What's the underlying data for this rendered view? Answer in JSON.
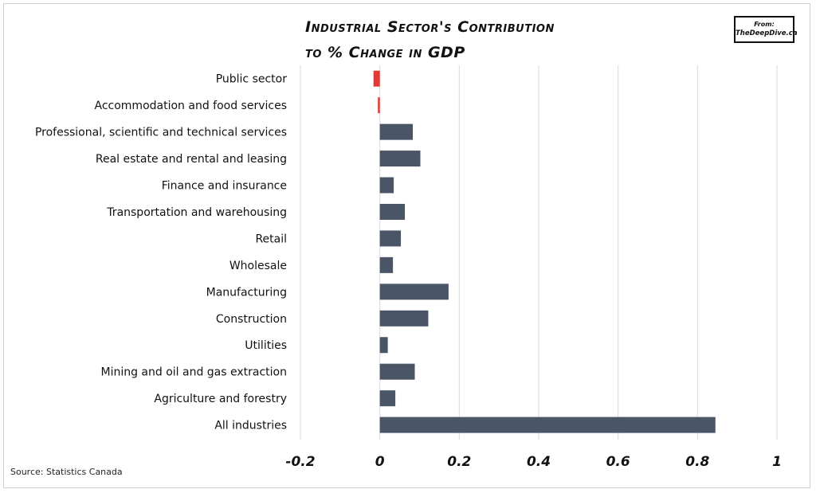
{
  "header": {
    "title_line1": "Industrial Sector's Contribution",
    "title_line2": "to % Change in GDP",
    "badge_from": "From:",
    "badge_site": "TheDeepDive.ca"
  },
  "footer": {
    "source": "Source: Statistics Canada"
  },
  "colors": {
    "positive": "#4a5568",
    "negative": "#e53935",
    "grid": "#d9d9d9"
  },
  "chart_data": {
    "type": "bar",
    "orientation": "horizontal",
    "title": "Industrial Sector's Contribution to % Change in GDP",
    "categories": [
      "Public sector",
      "Accommodation and food services",
      "Professional, scientific and technical services",
      "Real estate and rental and leasing",
      "Finance and insurance",
      "Transportation and warehousing",
      "Retail",
      "Wholesale",
      "Manufacturing",
      "Construction",
      "Utilities",
      "Mining and oil and gas extraction",
      "Agriculture and forestry",
      "All industries"
    ],
    "values": [
      -0.016,
      -0.005,
      0.083,
      0.102,
      0.035,
      0.063,
      0.053,
      0.033,
      0.173,
      0.122,
      0.02,
      0.088,
      0.039,
      0.845
    ],
    "xlim": [
      -0.2,
      1
    ],
    "xticks": [
      -0.2,
      0,
      0.2,
      0.4,
      0.6,
      0.8,
      1
    ],
    "xtick_labels": [
      "-0.2",
      "0",
      "0.2",
      "0.4",
      "0.6",
      "0.8",
      "1"
    ],
    "grid": true,
    "legend": "none"
  }
}
